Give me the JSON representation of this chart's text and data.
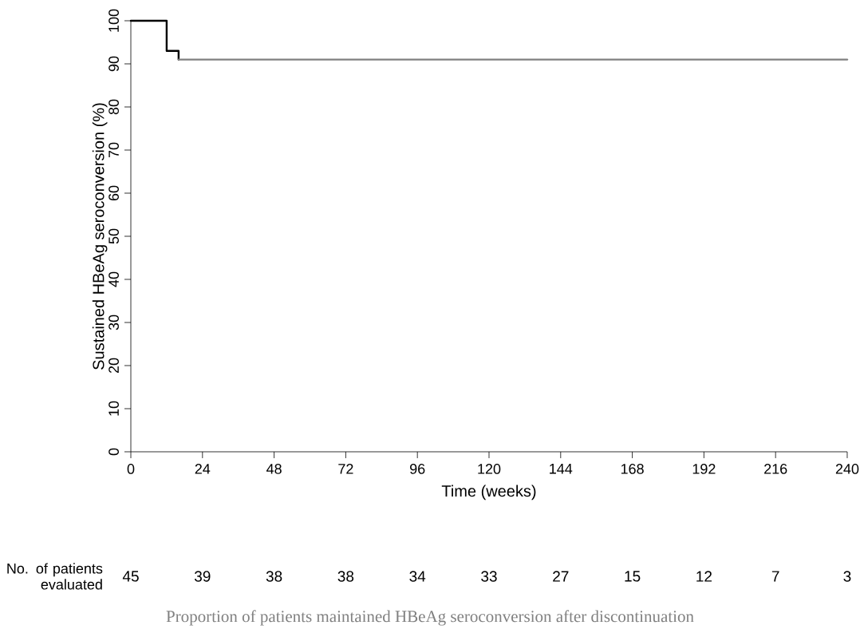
{
  "chart_data": {
    "type": "step",
    "ylabel": "Sustained HBeAg seroconversion (%)",
    "xlabel": "Time (weeks)",
    "xlim": [
      0,
      240
    ],
    "xticks": [
      0,
      24,
      48,
      72,
      96,
      120,
      144,
      168,
      192,
      216,
      240
    ],
    "ylim": [
      0,
      100
    ],
    "yticks": [
      0,
      10,
      20,
      30,
      40,
      50,
      60,
      70,
      80,
      90,
      100
    ],
    "grid": false,
    "series": [
      {
        "color": "#000000",
        "x": [
          0,
          12,
          16
        ],
        "values": [
          100,
          93,
          91
        ]
      },
      {
        "type": "line",
        "color": "#808080",
        "x": [
          16,
          240
        ],
        "values": [
          91,
          91
        ]
      }
    ],
    "annotations": [
      "No. of patients evaluated",
      "45",
      "39",
      "38",
      "38",
      "34",
      "33",
      "27",
      "15",
      "12",
      "7",
      "3",
      "Proportion of patients maintained HBeAg seroconversion after discontinuation"
    ]
  }
}
